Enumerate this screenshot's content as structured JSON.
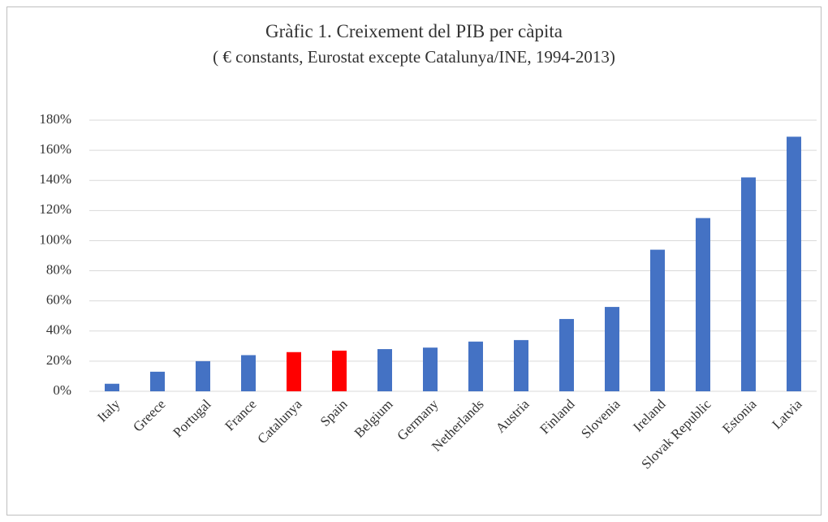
{
  "chart_data": {
    "type": "bar",
    "title": "Gràfic 1. Creixement del PIB per càpita",
    "subtitle": "( € constants, Eurostat excepte Catalunya/INE, 1994-2013)",
    "categories": [
      "Italy",
      "Greece",
      "Portugal",
      "France",
      "Catalunya",
      "Spain",
      "Belgium",
      "Germany",
      "Netherlands",
      "Austria",
      "Finland",
      "Slovenia",
      "Ireland",
      "Slovak Republic",
      "Estonia",
      "Latvia"
    ],
    "values": [
      5,
      13,
      20,
      24,
      26,
      27,
      28,
      29,
      33,
      34,
      48,
      56,
      94,
      115,
      142,
      169
    ],
    "colors": [
      "#4472c4",
      "#4472c4",
      "#4472c4",
      "#4472c4",
      "#ff0000",
      "#ff0000",
      "#4472c4",
      "#4472c4",
      "#4472c4",
      "#4472c4",
      "#4472c4",
      "#4472c4",
      "#4472c4",
      "#4472c4",
      "#4472c4",
      "#4472c4"
    ],
    "ylim": [
      0,
      180
    ],
    "yticks": [
      {
        "value": 0,
        "label": "0%"
      },
      {
        "value": 20,
        "label": "20%"
      },
      {
        "value": 40,
        "label": "40%"
      },
      {
        "value": 60,
        "label": "60%"
      },
      {
        "value": 80,
        "label": "80%"
      },
      {
        "value": 100,
        "label": "100%"
      },
      {
        "value": 120,
        "label": "120%"
      },
      {
        "value": 140,
        "label": "140%"
      },
      {
        "value": 160,
        "label": "160%"
      },
      {
        "value": 180,
        "label": "180%"
      }
    ],
    "grid": true
  }
}
